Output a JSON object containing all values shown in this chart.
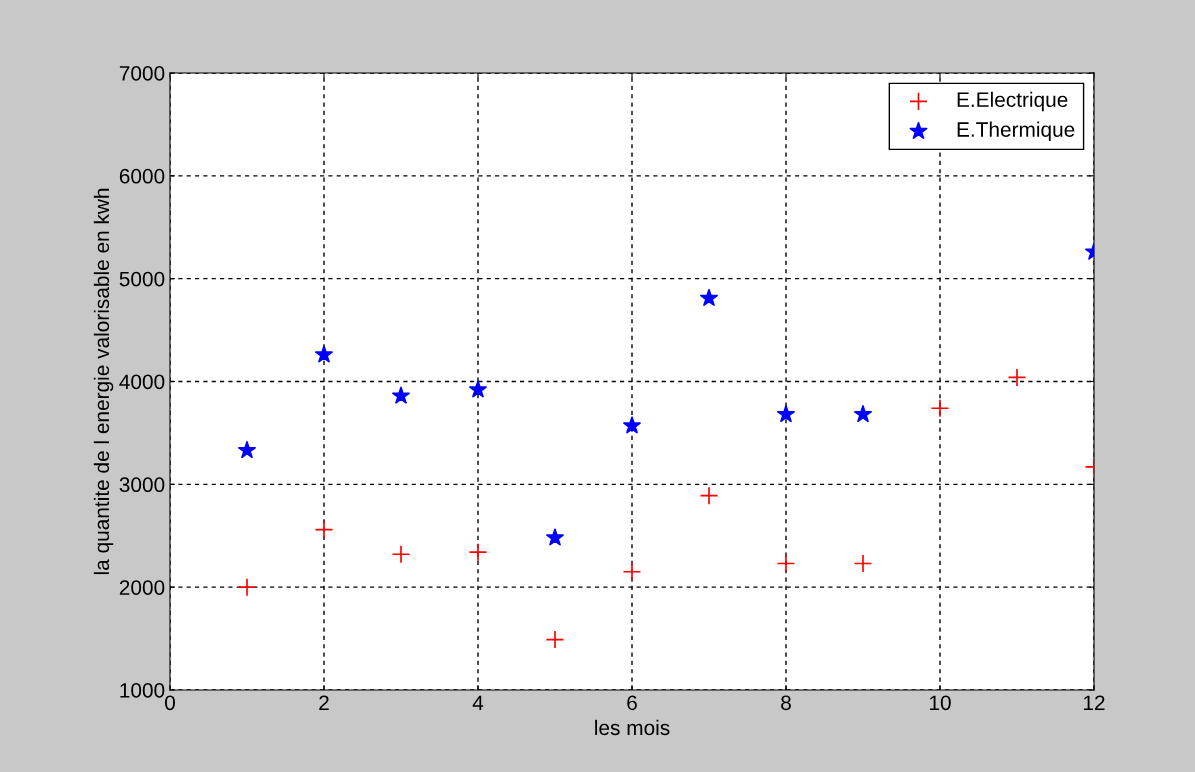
{
  "chart_data": {
    "type": "scatter",
    "xlabel": "les mois",
    "ylabel": "la quantite de l energie valorisable en kwh",
    "x": [
      1,
      2,
      3,
      4,
      5,
      6,
      7,
      8,
      9,
      10,
      11,
      12
    ],
    "series": [
      {
        "name": "E.Electrique",
        "color": "#ff0000",
        "marker": "cross",
        "values": [
          2000,
          2560,
          2320,
          2340,
          1490,
          2150,
          2890,
          2230,
          2230,
          3740,
          4040,
          3170
        ]
      },
      {
        "name": "E.Thermique",
        "color": "#0000ff",
        "marker": "star",
        "values": [
          3330,
          4260,
          3860,
          3920,
          2480,
          3570,
          4810,
          3680,
          3680,
          null,
          null,
          5260
        ]
      }
    ],
    "xlim": [
      0,
      12
    ],
    "xticks": [
      0,
      2,
      4,
      6,
      8,
      10,
      12
    ],
    "ylim": [
      1000,
      7000
    ],
    "yticks": [
      1000,
      2000,
      3000,
      4000,
      5000,
      6000,
      7000
    ],
    "grid": true,
    "legend": "top right"
  }
}
